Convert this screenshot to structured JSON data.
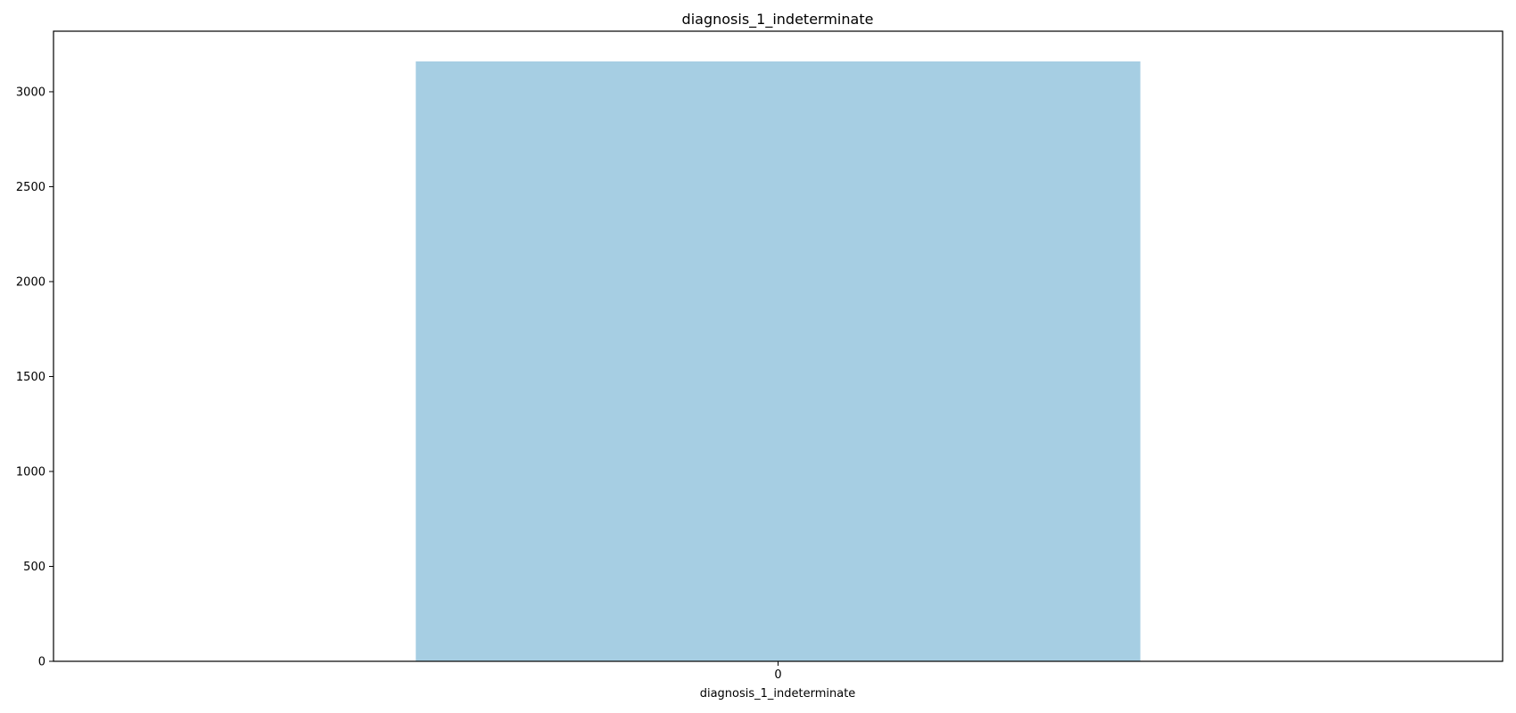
{
  "chart_data": {
    "type": "bar",
    "title": "diagnosis_1_indeterminate",
    "xlabel": "diagnosis_1_indeterminate",
    "ylabel": "",
    "categories": [
      "0"
    ],
    "values": [
      3160
    ],
    "ylim": [
      0,
      3319
    ],
    "yticks": [
      0,
      500,
      1000,
      1500,
      2000,
      2500,
      3000
    ],
    "grid": false,
    "legend": "none",
    "colors": {
      "bar": "#a6cee3",
      "axis": "#000000"
    }
  }
}
